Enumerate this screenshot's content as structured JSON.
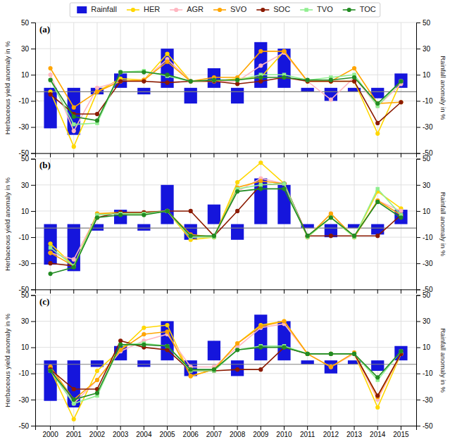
{
  "chart_data": [
    {
      "type": "bar",
      "title": "(a)",
      "categories": [
        "2000",
        "2001",
        "2002",
        "2003",
        "2004",
        "2005",
        "2006",
        "2007",
        "2008",
        "2009",
        "2010",
        "2011",
        "2012",
        "2013",
        "2014",
        "2015"
      ],
      "series": [
        {
          "name": "Rainfall",
          "type": "bar",
          "axis": "y2",
          "color": "#1515DC",
          "values": [
            -31,
            -36,
            -5,
            11,
            -5,
            30,
            -12,
            15,
            -12,
            35,
            30,
            -3,
            -10,
            -3,
            -8,
            11
          ]
        },
        {
          "name": "HER",
          "type": "line",
          "marker": "circle",
          "color": "#FFD700",
          "values": [
            -3,
            -45,
            -3,
            7,
            6,
            26,
            5,
            5,
            7,
            8,
            28,
            5,
            5,
            5,
            -35,
            5
          ]
        },
        {
          "name": "AGR",
          "type": "line",
          "marker": "circle",
          "color": "#FFB6C1",
          "values": [
            10,
            -33,
            0,
            5,
            6,
            22,
            5,
            5,
            5,
            17,
            27,
            5,
            -9,
            8,
            -14,
            3
          ]
        },
        {
          "name": "SVO",
          "type": "line",
          "marker": "circle",
          "color": "#FFA500",
          "values": [
            15,
            -15,
            -3,
            5,
            6,
            20,
            5,
            8,
            8,
            28,
            28,
            5,
            5,
            15,
            -12,
            -11
          ]
        },
        {
          "name": "SOC",
          "type": "line",
          "marker": "circle",
          "color": "#8B1A00",
          "values": [
            -5,
            -20,
            -20,
            5,
            5,
            4,
            5,
            5,
            3,
            5,
            8,
            5,
            5,
            5,
            -27,
            -11
          ]
        },
        {
          "name": "TVO",
          "type": "line",
          "marker": "square",
          "color": "#90EE90",
          "values": [
            6,
            -28,
            -27,
            12,
            13,
            9,
            5,
            6,
            6,
            10,
            10,
            6,
            8,
            10,
            -14,
            5
          ]
        },
        {
          "name": "TOC",
          "type": "line",
          "marker": "circle",
          "color": "#228B22",
          "values": [
            6,
            -22,
            -25,
            12,
            12,
            10,
            5,
            6,
            6,
            8,
            8,
            6,
            6,
            8,
            -12,
            5
          ]
        }
      ],
      "hline": -3,
      "ylabel": "Herbaceous yield anomaly in %",
      "y2label": "Rainfall anomaly in %",
      "ylim": [
        -50,
        50
      ],
      "yticks": [
        -50,
        -30,
        -10,
        10,
        30,
        50
      ],
      "y2lim": [
        -50,
        50
      ],
      "y2ticks": [
        -50,
        -30,
        -10,
        10,
        30,
        50
      ],
      "grid": true,
      "legend": "top",
      "tick_labels": "y"
    },
    {
      "type": "bar",
      "title": "(b)",
      "categories": [
        "2000",
        "2001",
        "2002",
        "2003",
        "2004",
        "2005",
        "2006",
        "2007",
        "2008",
        "2009",
        "2010",
        "2011",
        "2012",
        "2013",
        "2014",
        "2015"
      ],
      "series": [
        {
          "name": "Rainfall",
          "type": "bar",
          "axis": "y2",
          "color": "#1515DC",
          "values": [
            -31,
            -36,
            -5,
            11,
            -5,
            30,
            -12,
            15,
            -12,
            35,
            30,
            -3,
            -10,
            -3,
            -8,
            11
          ]
        },
        {
          "name": "HER",
          "type": "line",
          "marker": "circle",
          "color": "#FFD700",
          "values": [
            -15,
            -32,
            8,
            8,
            8,
            10,
            -12,
            -10,
            32,
            47,
            31,
            -10,
            5,
            -10,
            25,
            12
          ]
        },
        {
          "name": "AGR",
          "type": "line",
          "marker": "circle",
          "color": "#FFB6C1",
          "values": [
            -22,
            -27,
            7,
            8,
            8,
            10,
            -10,
            -10,
            25,
            35,
            31,
            -10,
            8,
            -10,
            18,
            10
          ]
        },
        {
          "name": "SVO",
          "type": "line",
          "marker": "circle",
          "color": "#FFA500",
          "values": [
            -22,
            -32,
            8,
            9,
            9,
            10,
            -8,
            -10,
            28,
            33,
            31,
            -10,
            8,
            -10,
            18,
            7
          ]
        },
        {
          "name": "SOC",
          "type": "line",
          "marker": "circle",
          "color": "#8B1A00",
          "values": [
            -30,
            -32,
            5,
            9,
            9,
            10,
            10,
            -9,
            10,
            30,
            31,
            -9,
            -9,
            -9,
            -9,
            7
          ]
        },
        {
          "name": "TVO",
          "type": "line",
          "marker": "square",
          "color": "#90EE90",
          "values": [
            -18,
            -32,
            7,
            8,
            8,
            10,
            -10,
            -10,
            27,
            30,
            31,
            -10,
            5,
            -10,
            27,
            7
          ]
        },
        {
          "name": "TOC",
          "type": "line",
          "marker": "circle",
          "color": "#228B22",
          "values": [
            -38,
            -33,
            5,
            7,
            7,
            10,
            -9,
            -9,
            25,
            27,
            27,
            -9,
            5,
            -9,
            17,
            5
          ]
        }
      ],
      "hline": -3,
      "ylabel": "Herbaceous yield anomaly in %",
      "y2label": "Rainfall anomaly in %",
      "ylim": [
        -50,
        50
      ],
      "yticks": [
        -50,
        -30,
        -10,
        10,
        30,
        50
      ],
      "y2lim": [
        -50,
        50
      ],
      "y2ticks": [
        -50,
        -30,
        -10,
        10,
        30,
        50
      ],
      "grid": true,
      "tick_labels": "y"
    },
    {
      "type": "bar",
      "title": "(c)",
      "categories": [
        "2000",
        "2001",
        "2002",
        "2003",
        "2004",
        "2005",
        "2006",
        "2007",
        "2008",
        "2009",
        "2010",
        "2011",
        "2012",
        "2013",
        "2014",
        "2015"
      ],
      "series": [
        {
          "name": "Rainfall",
          "type": "bar",
          "axis": "y2",
          "color": "#1515DC",
          "values": [
            -31,
            -36,
            -5,
            11,
            -5,
            30,
            -12,
            15,
            -12,
            35,
            30,
            -3,
            -10,
            -3,
            -8,
            11
          ]
        },
        {
          "name": "HER",
          "type": "line",
          "marker": "circle",
          "color": "#FFD700",
          "values": [
            -7,
            -45,
            -8,
            8,
            25,
            27,
            -12,
            -7,
            13,
            27,
            30,
            5,
            5,
            5,
            -36,
            5
          ]
        },
        {
          "name": "AGR",
          "type": "line",
          "marker": "circle",
          "color": "#FFB6C1",
          "values": [
            -5,
            -33,
            -15,
            7,
            15,
            20,
            -5,
            -5,
            10,
            25,
            28,
            5,
            -5,
            5,
            -30,
            5
          ]
        },
        {
          "name": "SVO",
          "type": "line",
          "marker": "circle",
          "color": "#FFA500",
          "values": [
            -5,
            -30,
            -15,
            8,
            20,
            22,
            -12,
            -7,
            13,
            26,
            30,
            5,
            -5,
            6,
            -28,
            5
          ]
        },
        {
          "name": "SOC",
          "type": "line",
          "marker": "circle",
          "color": "#8B1A00",
          "values": [
            -7,
            -22,
            -22,
            15,
            10,
            8,
            -8,
            -8,
            -7,
            -7,
            10,
            5,
            5,
            5,
            -27,
            5
          ]
        },
        {
          "name": "TVO",
          "type": "line",
          "marker": "square",
          "color": "#90EE90",
          "values": [
            -8,
            -33,
            -27,
            12,
            13,
            11,
            -8,
            -8,
            8,
            11,
            11,
            5,
            5,
            5,
            -15,
            7
          ]
        },
        {
          "name": "TOC",
          "type": "line",
          "marker": "circle",
          "color": "#228B22",
          "values": [
            -8,
            -30,
            -25,
            12,
            12,
            11,
            -7,
            -7,
            8,
            10,
            10,
            5,
            5,
            5,
            -13,
            7
          ]
        }
      ],
      "hline": -3,
      "ylabel": "Herbaceous yield anomaly in %",
      "y2label": "Rainfall anomaly in %",
      "ylim": [
        -50,
        50
      ],
      "yticks": [
        -50,
        -30,
        -10,
        10,
        30,
        50
      ],
      "y2lim": [
        -50,
        50
      ],
      "y2ticks": [
        -50,
        -30,
        -10,
        10,
        30,
        50
      ],
      "grid": true
    }
  ]
}
